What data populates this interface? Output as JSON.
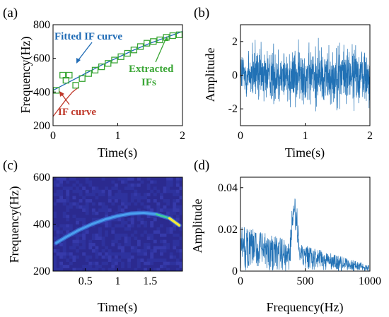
{
  "colors": {
    "fitted": "#1f6bb5",
    "if_curve": "#c0392b",
    "extracted": "#3aa635",
    "signal": "#2171b5",
    "axis": "#000000"
  },
  "chart_data": [
    {
      "panel": "(a)",
      "type": "line",
      "xlabel": "Time(s)",
      "ylabel": "Frequency(Hz)",
      "xlim": [
        0,
        2
      ],
      "ylim": [
        200,
        800
      ],
      "xticks": [
        "0",
        "1",
        "2"
      ],
      "yticks": [
        "200",
        "400",
        "600",
        "800"
      ],
      "grid": false,
      "series": [
        {
          "name": "Fitted IF curve",
          "x": [
            0,
            0.25,
            0.5,
            0.75,
            1.0,
            1.25,
            1.5,
            1.75,
            2.0
          ],
          "y": [
            410,
            460,
            510,
            560,
            605,
            650,
            690,
            725,
            760
          ]
        },
        {
          "name": "IF curve",
          "x": [
            0,
            0.1,
            0.2,
            0.3,
            0.4
          ],
          "y": [
            255,
            305,
            355,
            400,
            430
          ]
        },
        {
          "name": "Extracted IFs",
          "marker": "square",
          "x": [
            0.05,
            0.15,
            0.2,
            0.25,
            0.35,
            0.45,
            0.55,
            0.65,
            0.75,
            0.85,
            0.95,
            1.05,
            1.15,
            1.25,
            1.35,
            1.45,
            1.55,
            1.65,
            1.75,
            1.85,
            1.95
          ],
          "y": [
            410,
            500,
            470,
            500,
            440,
            480,
            510,
            530,
            550,
            570,
            590,
            610,
            630,
            650,
            670,
            690,
            700,
            710,
            725,
            735,
            740
          ]
        }
      ],
      "annotations": [
        "Fitted IF curve",
        "Extracted",
        "IFs",
        "IF curve"
      ]
    },
    {
      "panel": "(b)",
      "type": "line",
      "xlabel": "Time(s)",
      "ylabel": "Amplitude",
      "xlim": [
        0,
        2
      ],
      "ylim": [
        -3,
        3
      ],
      "xticks": [
        "0",
        "1",
        "2"
      ],
      "yticks": [
        "-2",
        "0",
        "2"
      ],
      "grid": false,
      "series": [
        {
          "noise_amplitude": 2.6,
          "num_points": 900
        }
      ]
    },
    {
      "panel": "(c)",
      "type": "heatmap",
      "xlabel": "Time(s)",
      "ylabel": "Frequency(Hz)",
      "xlim": [
        0,
        2
      ],
      "ylim": [
        200,
        600
      ],
      "xticks": [
        "0.5",
        "1",
        "1.5"
      ],
      "yticks": [
        "200",
        "400",
        "600"
      ],
      "grid": false,
      "ridge": {
        "x": [
          0.05,
          0.2,
          0.4,
          0.6,
          0.8,
          1.0,
          1.2,
          1.4,
          1.6,
          1.8,
          1.95
        ],
        "y": [
          320,
          345,
          375,
          400,
          420,
          435,
          445,
          448,
          442,
          425,
          395
        ]
      }
    },
    {
      "panel": "(d)",
      "type": "line",
      "xlabel": "Frequency(Hz)",
      "ylabel": "Amplitude",
      "xlim": [
        0,
        1000
      ],
      "ylim": [
        0,
        0.045
      ],
      "xticks": [
        "0",
        "500",
        "1000"
      ],
      "yticks": [
        "0",
        "0.02",
        "0.04"
      ],
      "grid": false,
      "series": [
        {
          "peak_hz": 420,
          "peak_amplitude": 0.045,
          "num_points": 600
        }
      ]
    }
  ]
}
